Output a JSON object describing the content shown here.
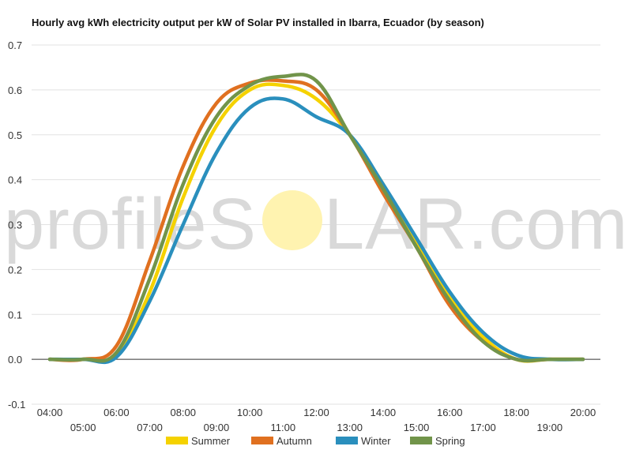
{
  "watermark": {
    "part1": "profileS",
    "part2": "LAR.com",
    "sun_color": "#fff3b0"
  },
  "chart_data": {
    "type": "line",
    "title": "Hourly avg kWh electricity output per kW of Solar PV installed in Ibarra, Ecuador (by season)",
    "xlabel": "",
    "ylabel": "",
    "ylim": [
      -0.1,
      0.7
    ],
    "yticks": [
      "-0.1",
      "0.0",
      "0.1",
      "0.2",
      "0.3",
      "0.4",
      "0.5",
      "0.6",
      "0.7"
    ],
    "grid": true,
    "legend_position": "bottom",
    "categories": [
      "04:00",
      "05:00",
      "06:00",
      "07:00",
      "08:00",
      "09:00",
      "10:00",
      "11:00",
      "12:00",
      "13:00",
      "14:00",
      "15:00",
      "16:00",
      "17:00",
      "18:00",
      "19:00",
      "20:00"
    ],
    "series": [
      {
        "name": "Summer",
        "color": "#f5d200",
        "values": [
          0,
          0,
          0.01,
          0.15,
          0.36,
          0.52,
          0.6,
          0.61,
          0.58,
          0.5,
          0.39,
          0.26,
          0.14,
          0.05,
          0,
          0,
          0
        ]
      },
      {
        "name": "Autumn",
        "color": "#e07020",
        "values": [
          0,
          0,
          0.03,
          0.22,
          0.43,
          0.57,
          0.615,
          0.62,
          0.6,
          0.5,
          0.37,
          0.25,
          0.12,
          0.04,
          0,
          0,
          0
        ]
      },
      {
        "name": "Winter",
        "color": "#2a8fbd",
        "values": [
          0,
          0,
          0.005,
          0.13,
          0.3,
          0.46,
          0.56,
          0.58,
          0.54,
          0.5,
          0.39,
          0.27,
          0.15,
          0.06,
          0.01,
          0,
          0
        ]
      },
      {
        "name": "Spring",
        "color": "#71944a",
        "values": [
          0,
          0,
          0.015,
          0.18,
          0.39,
          0.54,
          0.61,
          0.63,
          0.62,
          0.5,
          0.38,
          0.25,
          0.13,
          0.04,
          0,
          0,
          0
        ]
      }
    ]
  }
}
